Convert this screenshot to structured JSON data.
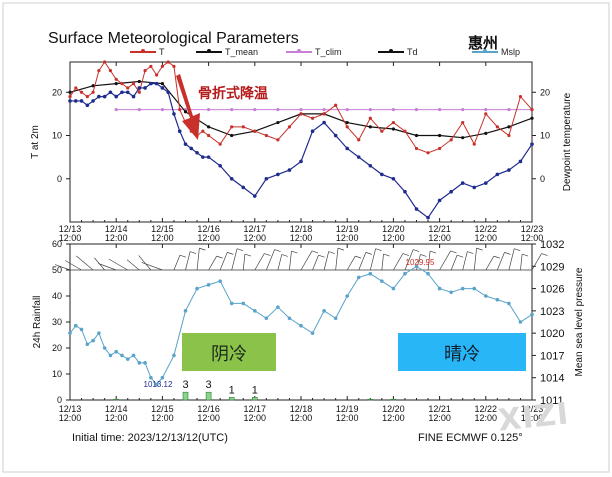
{
  "title": "Surface Meteorological Parameters",
  "city": "惠州",
  "legend": [
    {
      "label": "T",
      "color": "#c8302a"
    },
    {
      "label": "T_mean",
      "color": "#111111"
    },
    {
      "label": "T_clim",
      "color": "#c77fd6"
    },
    {
      "label": "Td",
      "color": "#111111"
    },
    {
      "label": "Mslp",
      "color": "#5aa3c9"
    }
  ],
  "footer": {
    "initial_time": "Initial time: 2023/12/13/12(UTC)",
    "model": "FINE ECMWF 0.125°"
  },
  "watermark": "XIZI",
  "chart_data": [
    {
      "type": "line",
      "ylabel_left": "T at 2m",
      "ylabel_right": "Dewpoint temperature",
      "ylim": [
        -10,
        27
      ],
      "y_ticks": [
        0,
        10,
        20
      ],
      "x_tick_labels": [
        [
          "12/13",
          "12:00"
        ],
        [
          "12/14",
          "12:00"
        ],
        [
          "12/15",
          "12:00"
        ],
        [
          "12/16",
          "12:00"
        ],
        [
          "12/17",
          "12:00"
        ],
        [
          "12/18",
          "12:00"
        ],
        [
          "12/19",
          "12:00"
        ],
        [
          "12/20",
          "12:00"
        ],
        [
          "12/21",
          "12:00"
        ],
        [
          "12/22",
          "12:00"
        ],
        [
          "12/23",
          "12:00"
        ]
      ],
      "annotation": "骨折式降温",
      "series": [
        {
          "name": "T",
          "color": "#c8302a",
          "x": [
            0,
            0.125,
            0.25,
            0.375,
            0.5,
            0.625,
            0.75,
            0.875,
            1,
            1.125,
            1.25,
            1.375,
            1.5,
            1.625,
            1.75,
            1.875,
            2,
            2.125,
            2.25,
            2.375,
            2.5,
            2.625,
            2.75,
            2.875,
            3,
            3.25,
            3.5,
            3.75,
            4,
            4.25,
            4.5,
            4.75,
            5,
            5.25,
            5.5,
            5.75,
            6,
            6.25,
            6.5,
            6.75,
            7,
            7.25,
            7.5,
            7.75,
            8,
            8.25,
            8.5,
            8.75,
            9,
            9.25,
            9.5,
            9.75,
            10
          ],
          "values": [
            19,
            21,
            20,
            19,
            20,
            25,
            27,
            25,
            23,
            22,
            21,
            22,
            20,
            25,
            26,
            24,
            26,
            27,
            26,
            16,
            13,
            11,
            10,
            11,
            10,
            8,
            12,
            12,
            11,
            10,
            9,
            12,
            15,
            14,
            15,
            17,
            12,
            9,
            14,
            11,
            13,
            11,
            7,
            6,
            7,
            9,
            13,
            8,
            15,
            12,
            10,
            19,
            16
          ]
        },
        {
          "name": "T_mean",
          "color": "#111111",
          "x": [
            0,
            0.5,
            1,
            1.5,
            2,
            2.5,
            3,
            3.5,
            4,
            4.5,
            5,
            5.5,
            6,
            6.5,
            7,
            7.5,
            8,
            8.5,
            9,
            9.5,
            10
          ],
          "values": [
            20,
            21.5,
            22,
            22.5,
            22,
            15.5,
            12,
            10,
            11,
            13,
            15,
            15,
            13,
            12,
            11.5,
            10,
            10,
            9.5,
            10.5,
            12,
            14
          ]
        },
        {
          "name": "T_clim",
          "color": "#c77fd6",
          "x": [
            1,
            1.5,
            2,
            2.5,
            3,
            3.5,
            4,
            4.5,
            5,
            5.5,
            6,
            6.5,
            7,
            7.5,
            8,
            8.5,
            9,
            9.5,
            10
          ],
          "values": [
            16,
            16,
            16,
            16,
            16,
            16,
            16,
            16,
            16,
            16,
            16,
            16,
            16,
            16,
            16,
            16,
            16,
            16,
            16
          ]
        },
        {
          "name": "Td",
          "color": "#1e2b8f",
          "x": [
            0,
            0.125,
            0.25,
            0.375,
            0.5,
            0.625,
            0.75,
            0.875,
            1,
            1.125,
            1.25,
            1.375,
            1.5,
            1.625,
            1.75,
            1.875,
            2,
            2.125,
            2.25,
            2.375,
            2.5,
            2.625,
            2.75,
            2.875,
            3,
            3.25,
            3.5,
            3.75,
            4,
            4.25,
            4.5,
            4.75,
            5,
            5.25,
            5.5,
            5.75,
            6,
            6.25,
            6.5,
            6.75,
            7,
            7.25,
            7.5,
            7.75,
            8,
            8.25,
            8.5,
            8.75,
            9,
            9.25,
            9.5,
            9.75,
            10
          ],
          "values": [
            18,
            18,
            18,
            17,
            18,
            19,
            19,
            20,
            19,
            20,
            20,
            19,
            21,
            21,
            22,
            22,
            21,
            20,
            15,
            11,
            8,
            7,
            6,
            5,
            5,
            3,
            0,
            -2,
            -4,
            0,
            1,
            2,
            4,
            11,
            13,
            10,
            7,
            5,
            3,
            1,
            0,
            -3,
            -7,
            -9,
            -5,
            -3,
            -1,
            -2,
            -1,
            1,
            2,
            4,
            8
          ]
        }
      ]
    },
    {
      "type": "line",
      "ylabel_left": "24h Rainfall",
      "ylabel_right": "Mean sea level pressure",
      "ylim_left": [
        0,
        60
      ],
      "ylim_right": [
        1011,
        1032
      ],
      "y_ticks_left": [
        0,
        10,
        20,
        30,
        40,
        50,
        60
      ],
      "y_ticks_right": [
        1011,
        1014,
        1017,
        1020,
        1023,
        1026,
        1029,
        1032
      ],
      "x_tick_labels": [
        [
          "12/13",
          "12:00"
        ],
        [
          "12/14",
          "12:00"
        ],
        [
          "12/15",
          "12:00"
        ],
        [
          "12/16",
          "12:00"
        ],
        [
          "12/17",
          "12:00"
        ],
        [
          "12/18",
          "12:00"
        ],
        [
          "12/19",
          "12:00"
        ],
        [
          "12/20",
          "12:00"
        ],
        [
          "12/21",
          "12:00"
        ],
        [
          "12/22",
          "12:00"
        ],
        [
          "12/23",
          "12:00"
        ]
      ],
      "series": [
        {
          "name": "Mslp",
          "color": "#5aa3c9",
          "x": [
            0,
            0.125,
            0.25,
            0.375,
            0.5,
            0.625,
            0.75,
            0.875,
            1,
            1.125,
            1.25,
            1.375,
            1.5,
            1.625,
            1.75,
            1.875,
            2,
            2.25,
            2.5,
            2.75,
            3,
            3.25,
            3.5,
            3.75,
            4,
            4.25,
            4.5,
            4.75,
            5,
            5.25,
            5.5,
            5.75,
            6,
            6.25,
            6.5,
            6.75,
            7,
            7.25,
            7.5,
            7.75,
            8,
            8.25,
            8.5,
            8.75,
            9,
            9.25,
            9.5,
            9.75,
            10
          ],
          "values": [
            1020,
            1021,
            1020.5,
            1018.5,
            1019,
            1020,
            1018,
            1017,
            1017.5,
            1017,
            1016.5,
            1017,
            1016,
            1016,
            1014,
            1013.1,
            1014,
            1017,
            1023,
            1026,
            1026.5,
            1027,
            1024,
            1024,
            1023,
            1022,
            1023.5,
            1022,
            1021,
            1020,
            1023,
            1022,
            1025,
            1027.5,
            1028,
            1027,
            1026,
            1028,
            1029,
            1028,
            1026,
            1025.5,
            1026,
            1026,
            1025,
            1024.5,
            1024,
            1021.5,
            1022.5
          ]
        },
        {
          "name": "24h Rainfall",
          "color": "#4caf50",
          "type": "bar",
          "x": [
            1,
            2.5,
            3,
            3.5,
            4,
            6.5,
            7
          ],
          "values": [
            0.3,
            3,
            3,
            1,
            1,
            0.3,
            0.3
          ],
          "labels": [
            "",
            "3",
            "3",
            "1",
            "1",
            "",
            ""
          ]
        }
      ],
      "annotations": [
        {
          "text": "1013.12",
          "color": "#1e2b8f"
        },
        {
          "text": "1029.95",
          "color": "#c8302a"
        },
        {
          "text": "阴冷",
          "box_color": "#8bc34a"
        },
        {
          "text": "晴冷",
          "box_color": "#29b6f6"
        }
      ]
    }
  ]
}
